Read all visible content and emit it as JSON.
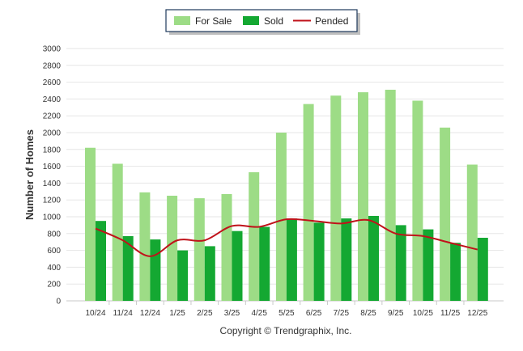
{
  "chart_data": {
    "type": "bar",
    "title": "",
    "xlabel": "",
    "ylabel": "Number of Homes",
    "ylim": [
      0,
      3000
    ],
    "ytick_step": 200,
    "grid": true,
    "legend_position": "top-center",
    "categories": [
      "10/24",
      "11/24",
      "12/24",
      "1/25",
      "2/25",
      "3/25",
      "4/25",
      "5/25",
      "6/25",
      "7/25",
      "8/25",
      "9/25",
      "10/25",
      "11/25",
      "12/25"
    ],
    "series": [
      {
        "name": "For Sale",
        "kind": "bar",
        "color": "#9ddc86",
        "values": [
          1820,
          1630,
          1290,
          1250,
          1220,
          1270,
          1530,
          2000,
          2340,
          2440,
          2480,
          2510,
          2380,
          2060,
          1620
        ]
      },
      {
        "name": "Sold",
        "kind": "bar",
        "color": "#14a832",
        "values": [
          950,
          770,
          730,
          600,
          650,
          830,
          880,
          980,
          930,
          980,
          1010,
          900,
          850,
          690,
          750
        ]
      },
      {
        "name": "Pended",
        "kind": "line",
        "color": "#c0121a",
        "values": [
          860,
          720,
          530,
          720,
          720,
          890,
          880,
          970,
          950,
          920,
          960,
          800,
          770,
          690,
          610
        ]
      }
    ],
    "footer": "Copyright © Trendgraphix, Inc."
  }
}
